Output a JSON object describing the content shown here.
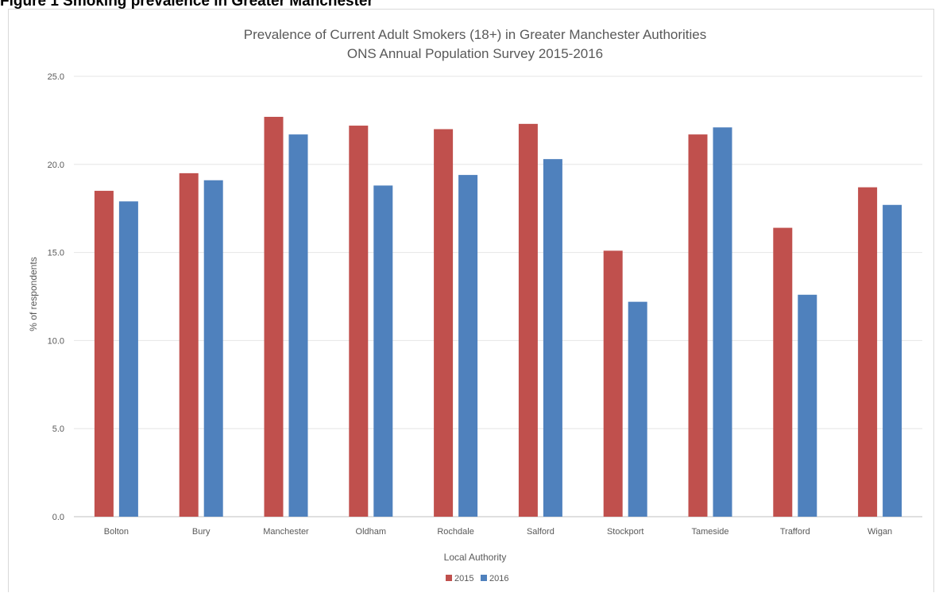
{
  "figure_caption": "Figure 1 Smoking prevalence in Greater Manchester",
  "chart_data": {
    "type": "bar",
    "title": "Prevalence of Current Adult Smokers (18+) in Greater Manchester Authorities",
    "subtitle": "ONS Annual Population Survey 2015-2016",
    "xlabel": "Local Authority",
    "ylabel": "% of respondents",
    "ylim": [
      0,
      25
    ],
    "yticks": [
      0,
      5,
      10,
      15,
      20,
      25
    ],
    "ytick_labels": [
      "0.0",
      "5.0",
      "10.0",
      "15.0",
      "20.0",
      "25.0"
    ],
    "grid": true,
    "legend_position": "bottom",
    "categories": [
      "Bolton",
      "Bury",
      "Manchester",
      "Oldham",
      "Rochdale",
      "Salford",
      "Stockport",
      "Tameside",
      "Trafford",
      "Wigan"
    ],
    "series": [
      {
        "name": "2015",
        "color": "#c0504d",
        "values": [
          18.5,
          19.5,
          22.7,
          22.2,
          22.0,
          22.3,
          15.1,
          21.7,
          16.4,
          18.7
        ]
      },
      {
        "name": "2016",
        "color": "#4f81bd",
        "values": [
          17.9,
          19.1,
          21.7,
          18.8,
          19.4,
          20.3,
          12.2,
          22.1,
          12.6,
          17.7
        ]
      }
    ]
  }
}
